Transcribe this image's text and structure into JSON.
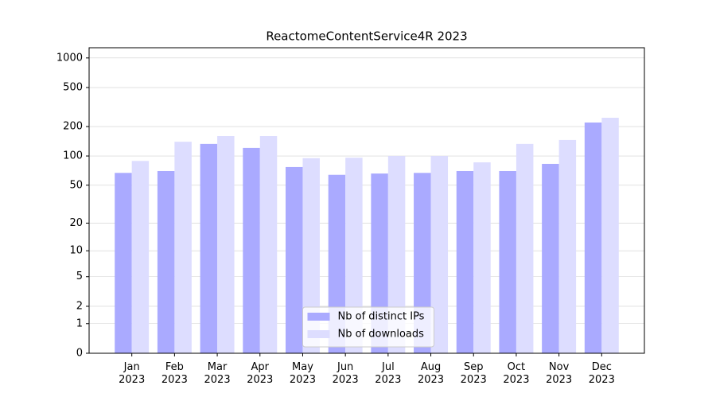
{
  "chart_data": {
    "type": "bar",
    "title": "ReactomeContentService4R 2023",
    "categories": [
      "Jan 2023",
      "Feb 2023",
      "Mar 2023",
      "Apr 2023",
      "May 2023",
      "Jun 2023",
      "Jul 2023",
      "Aug 2023",
      "Sep 2023",
      "Oct 2023",
      "Nov 2023",
      "Dec 2023"
    ],
    "series": [
      {
        "name": "Nb of distinct IPs",
        "color": "#aaaaff",
        "values": [
          67,
          70,
          133,
          121,
          77,
          64,
          66,
          67,
          70,
          70,
          83,
          220
        ]
      },
      {
        "name": "Nb of downloads",
        "color": "#ddddff",
        "values": [
          89,
          140,
          160,
          160,
          95,
          96,
          100,
          100,
          86,
          133,
          146,
          246
        ]
      }
    ],
    "yscale": "log1p",
    "ylim": [
      0,
      1270
    ],
    "yticks": [
      0,
      1,
      2,
      5,
      10,
      20,
      50,
      100,
      200,
      500,
      1000
    ],
    "grid": true,
    "legend": "lower center"
  }
}
